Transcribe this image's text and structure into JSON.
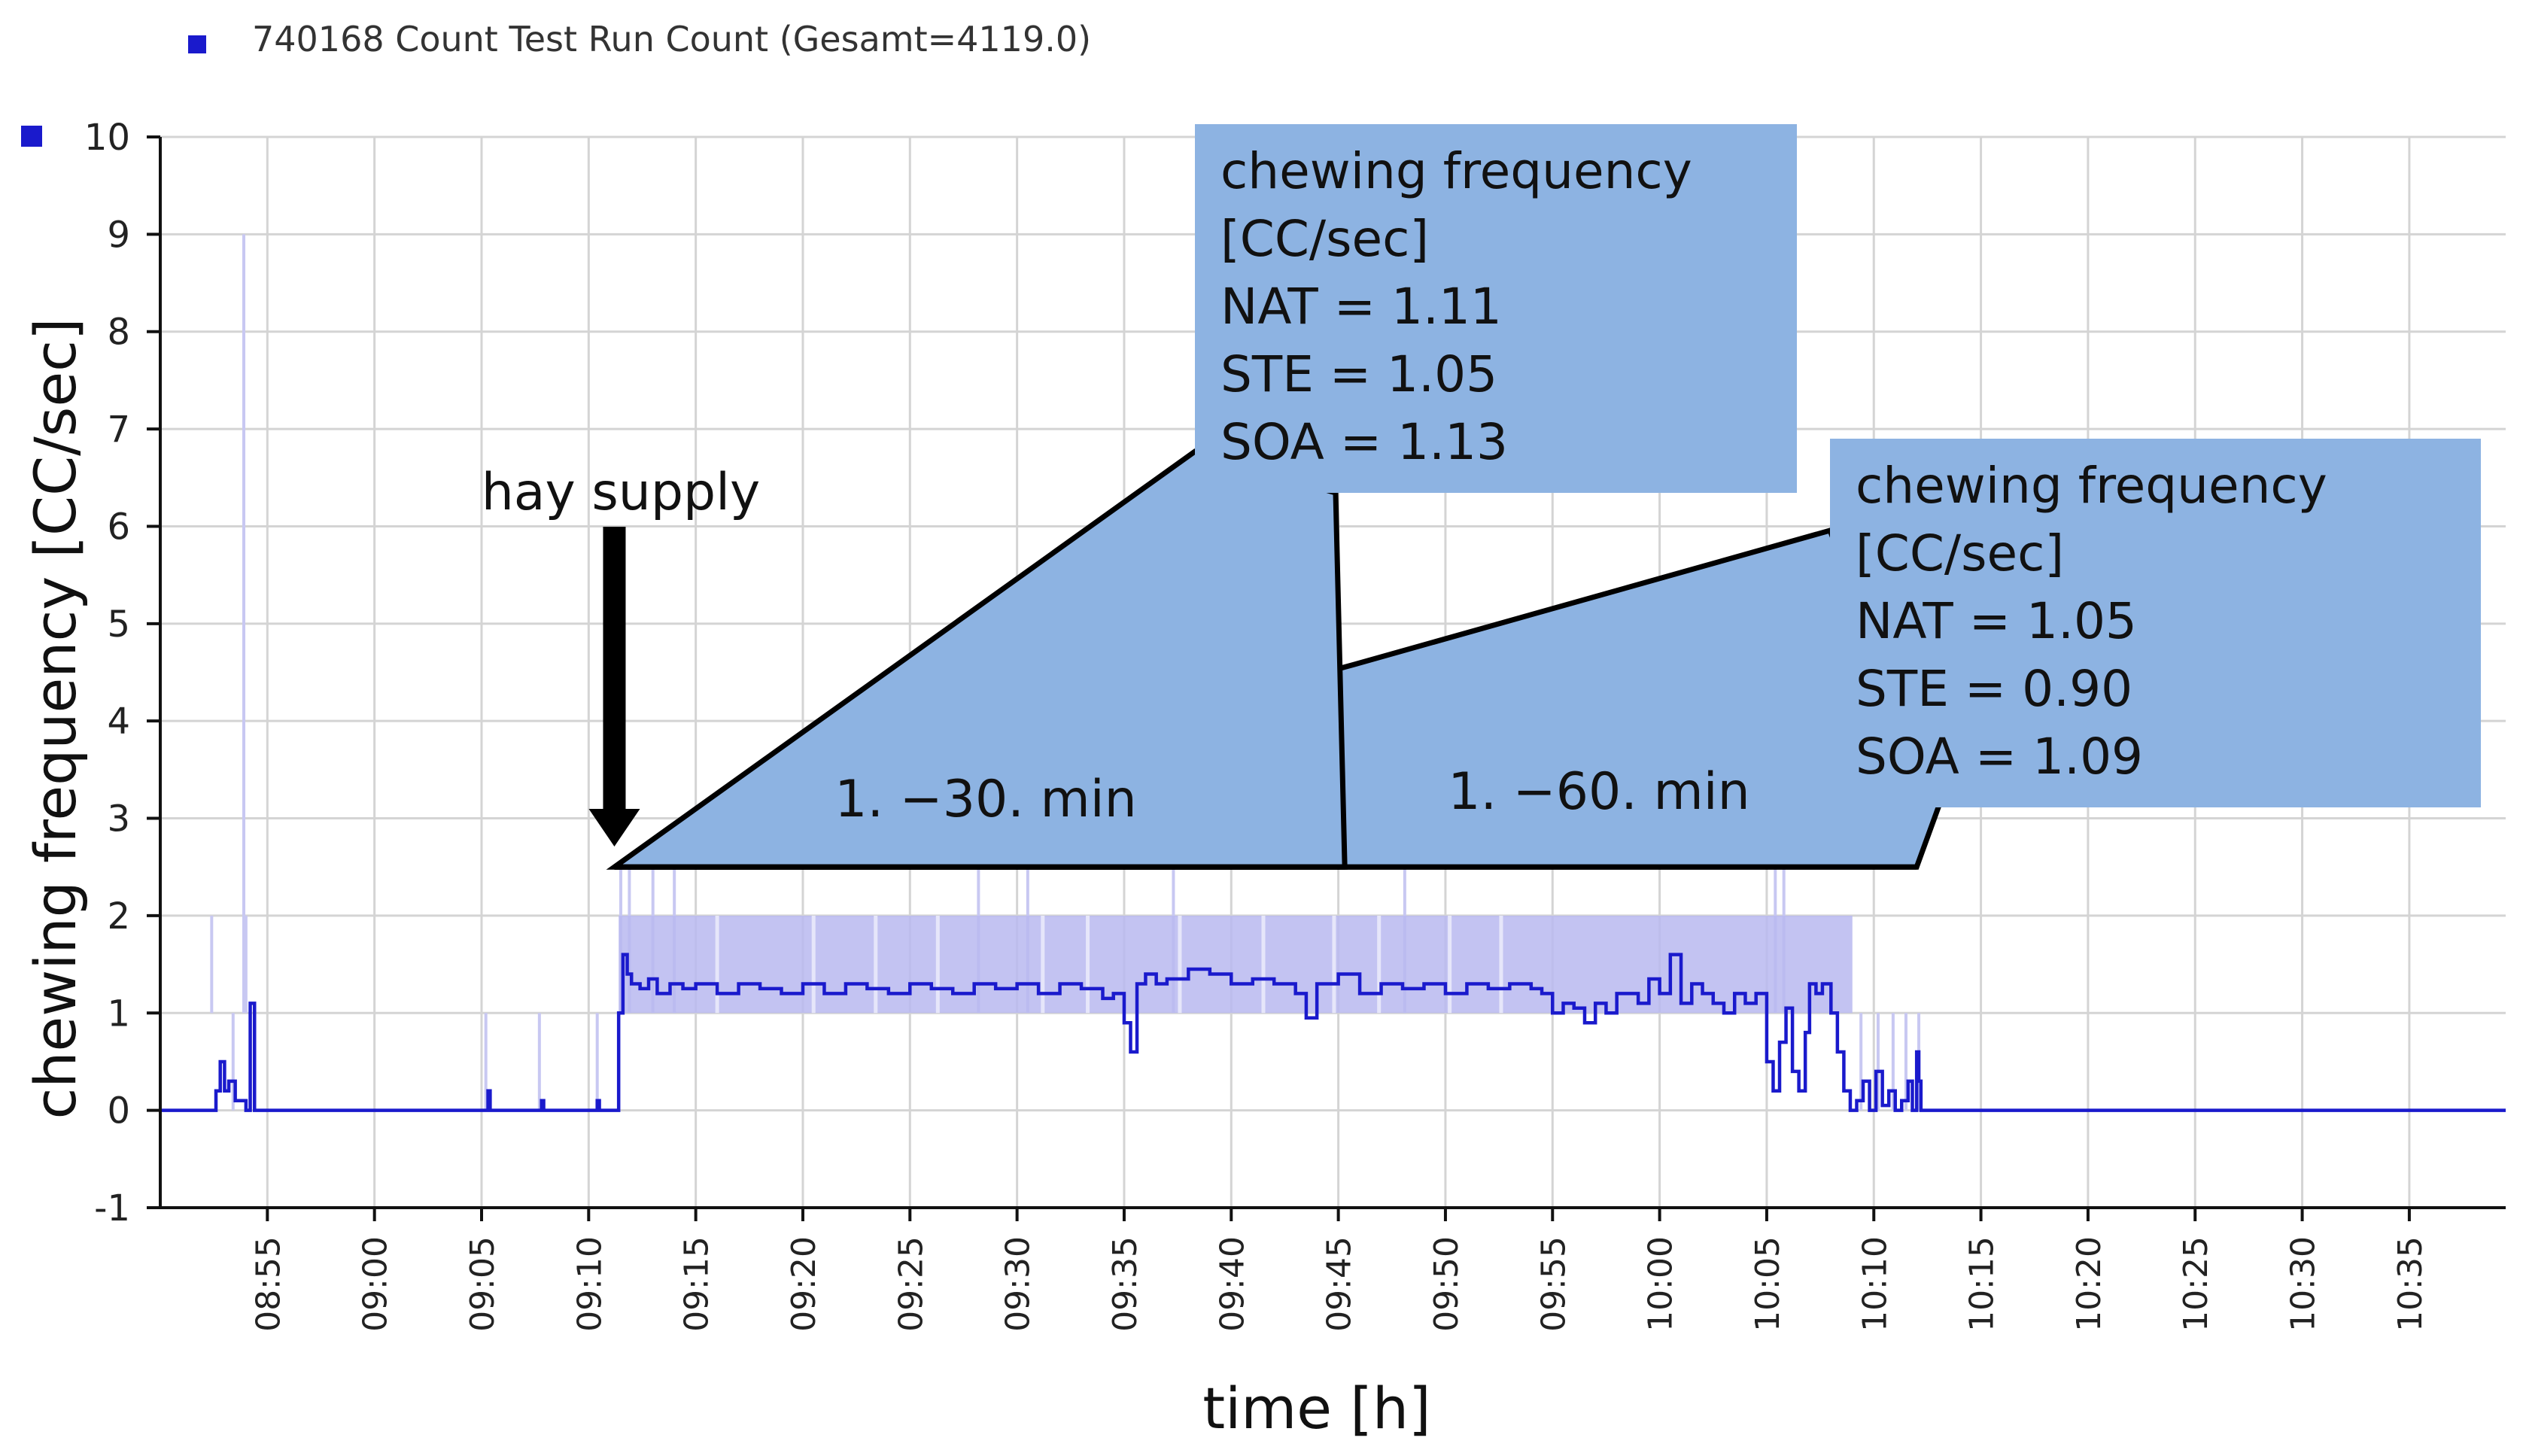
{
  "chart_data": {
    "type": "line",
    "title": "",
    "legend": {
      "label": "740168  Count Test Run Count (Gesamt=4119.0)",
      "position": "top-left",
      "color": "#1a1acc"
    },
    "xlabel": "time  [h]",
    "ylabel": "chewing frequency  [CC/sec]",
    "ylim": [
      -1,
      10
    ],
    "yticks": [
      -1,
      0,
      1,
      2,
      3,
      4,
      5,
      6,
      7,
      8,
      9,
      10
    ],
    "xlim_min": [
      530,
      639.5
    ],
    "xticks": [
      "08:55",
      "09:00",
      "09:05",
      "09:10",
      "09:15",
      "09:20",
      "09:25",
      "09:30",
      "09:35",
      "09:40",
      "09:45",
      "09:50",
      "09:55",
      "10:00",
      "10:05",
      "10:10",
      "10:15",
      "10:20",
      "10:25",
      "10:30",
      "10:35"
    ],
    "xticks_min": [
      535,
      540,
      545,
      550,
      555,
      560,
      565,
      570,
      575,
      580,
      585,
      590,
      595,
      600,
      605,
      610,
      615,
      620,
      625,
      630,
      635
    ],
    "grid": true,
    "series": [
      {
        "name": "chewing frequency",
        "color": "#1a1acc",
        "x": [
          530,
          532.3,
          532.6,
          532.8,
          533.0,
          533.2,
          533.5,
          534.0,
          534.2,
          534.4,
          545.2,
          545.3,
          545.4,
          547.7,
          547.8,
          547.9,
          550.3,
          550.4,
          550.5,
          551.0,
          551.2,
          551.4,
          551.6,
          551.8,
          552.0,
          552.4,
          552.8,
          553.2,
          553.8,
          554.4,
          555.0,
          556.0,
          557.0,
          558.0,
          559.0,
          560.0,
          561.0,
          562.0,
          563.0,
          564.0,
          565.0,
          566.0,
          567.0,
          568.0,
          569.0,
          570.0,
          571.0,
          572.0,
          573.0,
          574.0,
          574.5,
          575.0,
          575.3,
          575.6,
          576.0,
          576.5,
          577.0,
          578.0,
          579.0,
          580.0,
          581.0,
          582.0,
          583.0,
          583.5,
          584.0,
          585.0,
          586.0,
          587.0,
          588.0,
          589.0,
          590.0,
          591.0,
          592.0,
          593.0,
          594.0,
          594.5,
          595.0,
          595.5,
          596.0,
          596.5,
          597.0,
          597.5,
          598.0,
          599.0,
          599.5,
          600.0,
          600.5,
          601.0,
          601.5,
          602.0,
          602.5,
          603.0,
          603.5,
          604.0,
          604.5,
          605.0,
          605.3,
          605.6,
          605.9,
          606.2,
          606.5,
          606.8,
          607.0,
          607.3,
          607.6,
          608.0,
          608.3,
          608.6,
          608.9,
          609.2,
          609.5,
          609.8,
          610.1,
          610.4,
          610.7,
          611.0,
          611.3,
          611.6,
          611.8,
          612.0,
          612.1,
          612.2,
          639.5
        ],
        "values": [
          0,
          0,
          0.2,
          0.5,
          0.2,
          0.3,
          0.1,
          0,
          1.1,
          0,
          0,
          0.2,
          0,
          0,
          0.1,
          0,
          0,
          0.1,
          0,
          0,
          0,
          1.0,
          1.6,
          1.4,
          1.3,
          1.25,
          1.35,
          1.2,
          1.3,
          1.25,
          1.3,
          1.2,
          1.3,
          1.25,
          1.2,
          1.3,
          1.2,
          1.3,
          1.25,
          1.2,
          1.3,
          1.25,
          1.2,
          1.3,
          1.25,
          1.3,
          1.2,
          1.3,
          1.25,
          1.15,
          1.2,
          0.9,
          0.6,
          1.3,
          1.4,
          1.3,
          1.35,
          1.45,
          1.4,
          1.3,
          1.35,
          1.3,
          1.2,
          0.95,
          1.3,
          1.4,
          1.2,
          1.3,
          1.25,
          1.3,
          1.2,
          1.3,
          1.25,
          1.3,
          1.25,
          1.2,
          1.0,
          1.1,
          1.05,
          0.9,
          1.1,
          1.0,
          1.2,
          1.1,
          1.35,
          1.2,
          1.6,
          1.1,
          1.3,
          1.2,
          1.1,
          1.0,
          1.2,
          1.1,
          1.2,
          0.5,
          0.2,
          0.7,
          1.05,
          0.4,
          0.2,
          0.8,
          1.3,
          1.2,
          1.3,
          1.0,
          0.6,
          0.2,
          0,
          0.1,
          0.3,
          0,
          0.4,
          0.05,
          0.2,
          0,
          0.1,
          0.3,
          0,
          0.6,
          0.3,
          0,
          0
        ]
      }
    ],
    "bands": [
      {
        "name": "activity-band",
        "x0": 551.4,
        "x1": 609.0,
        "y0": 1.0,
        "y1": 2.0,
        "color": "#b8b8f0"
      }
    ],
    "spikes": {
      "color": "#c8c8f2",
      "items": [
        {
          "x": 532.4,
          "y": 2
        },
        {
          "x": 533.4,
          "y": 1
        },
        {
          "x": 533.9,
          "y": 9
        },
        {
          "x": 534.0,
          "y": 2
        },
        {
          "x": 545.2,
          "y": 1
        },
        {
          "x": 547.7,
          "y": 1
        },
        {
          "x": 550.4,
          "y": 1
        },
        {
          "x": 551.5,
          "y": 2.5
        },
        {
          "x": 551.9,
          "y": 2.5
        },
        {
          "x": 553.0,
          "y": 2.5
        },
        {
          "x": 554.0,
          "y": 2.5
        },
        {
          "x": 555.9,
          "y": 0
        },
        {
          "x": 558.9,
          "y": 0
        },
        {
          "x": 559.5,
          "y": 0
        },
        {
          "x": 562.5,
          "y": 0
        },
        {
          "x": 565.2,
          "y": 0
        },
        {
          "x": 567.8,
          "y": 0
        },
        {
          "x": 568.2,
          "y": 2.5
        },
        {
          "x": 568.7,
          "y": 0
        },
        {
          "x": 570.5,
          "y": 2.5
        },
        {
          "x": 572.3,
          "y": 0
        },
        {
          "x": 574.8,
          "y": 0
        },
        {
          "x": 576.1,
          "y": 0
        },
        {
          "x": 577.3,
          "y": 2.5
        },
        {
          "x": 579.7,
          "y": 0
        },
        {
          "x": 580.5,
          "y": 0
        },
        {
          "x": 582.5,
          "y": 0
        },
        {
          "x": 583.6,
          "y": 0
        },
        {
          "x": 584.3,
          "y": 0
        },
        {
          "x": 585.0,
          "y": 0
        },
        {
          "x": 586.3,
          "y": 0
        },
        {
          "x": 588.1,
          "y": 2.5
        },
        {
          "x": 589.0,
          "y": 0
        },
        {
          "x": 591.2,
          "y": 0
        },
        {
          "x": 594.6,
          "y": 0
        },
        {
          "x": 595.5,
          "y": 0
        },
        {
          "x": 596.2,
          "y": 0
        },
        {
          "x": 597.0,
          "y": 0
        },
        {
          "x": 597.8,
          "y": 0
        },
        {
          "x": 598.5,
          "y": 0
        },
        {
          "x": 599.3,
          "y": 0
        },
        {
          "x": 600.2,
          "y": 0
        },
        {
          "x": 601.0,
          "y": 0
        },
        {
          "x": 601.6,
          "y": 0
        },
        {
          "x": 602.3,
          "y": 0
        },
        {
          "x": 603.2,
          "y": 0
        },
        {
          "x": 604.0,
          "y": 0
        },
        {
          "x": 604.7,
          "y": 0
        },
        {
          "x": 605.4,
          "y": 2.5
        },
        {
          "x": 605.8,
          "y": 2.5
        },
        {
          "x": 606.4,
          "y": 0
        },
        {
          "x": 607.2,
          "y": 0
        },
        {
          "x": 608.2,
          "y": 0
        },
        {
          "x": 609.4,
          "y": 1
        },
        {
          "x": 610.2,
          "y": 1
        },
        {
          "x": 610.9,
          "y": 1
        },
        {
          "x": 611.5,
          "y": 1
        },
        {
          "x": 612.1,
          "y": 1
        }
      ]
    },
    "annotations": {
      "hay_supply": {
        "label": "hay supply",
        "x": 551.2
      },
      "window_30": {
        "label": "1.  −30. min",
        "x0": 551.2,
        "x1": 585.3
      },
      "window_60": {
        "label": "1.  −60. min",
        "x0": 551.2,
        "x1": 612.0
      },
      "callout_30": {
        "color": "#8db3e2",
        "lines": [
          "chewing frequency",
          "[CC/sec]",
          "NAT = 1.11",
          "STE  = 1.05",
          "SOA = 1.13"
        ]
      },
      "callout_60": {
        "color": "#8db3e2",
        "lines": [
          "chewing frequency",
          "[CC/sec]",
          "NAT = 1.05",
          "STE  = 0.90",
          "SOA = 1.09"
        ]
      }
    }
  }
}
